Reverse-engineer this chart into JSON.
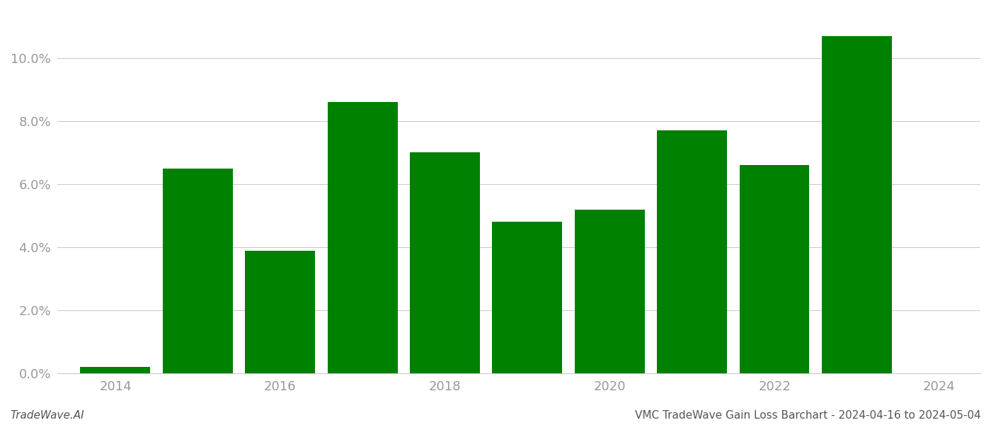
{
  "years": [
    2014,
    2015,
    2016,
    2017,
    2018,
    2019,
    2020,
    2021,
    2022,
    2023
  ],
  "values": [
    0.002,
    0.065,
    0.039,
    0.086,
    0.07,
    0.048,
    0.052,
    0.077,
    0.066,
    0.107
  ],
  "bar_color": "#008000",
  "background_color": "#ffffff",
  "footer_left": "TradeWave.AI",
  "footer_right": "VMC TradeWave Gain Loss Barchart - 2024-04-16 to 2024-05-04",
  "ylim": [
    0,
    0.115
  ],
  "yticks": [
    0.0,
    0.02,
    0.04,
    0.06,
    0.08,
    0.1
  ],
  "xtick_positions": [
    2014,
    2016,
    2018,
    2020,
    2022,
    2024
  ],
  "grid_color": "#cccccc",
  "tick_label_color": "#999999",
  "bar_width": 0.85
}
